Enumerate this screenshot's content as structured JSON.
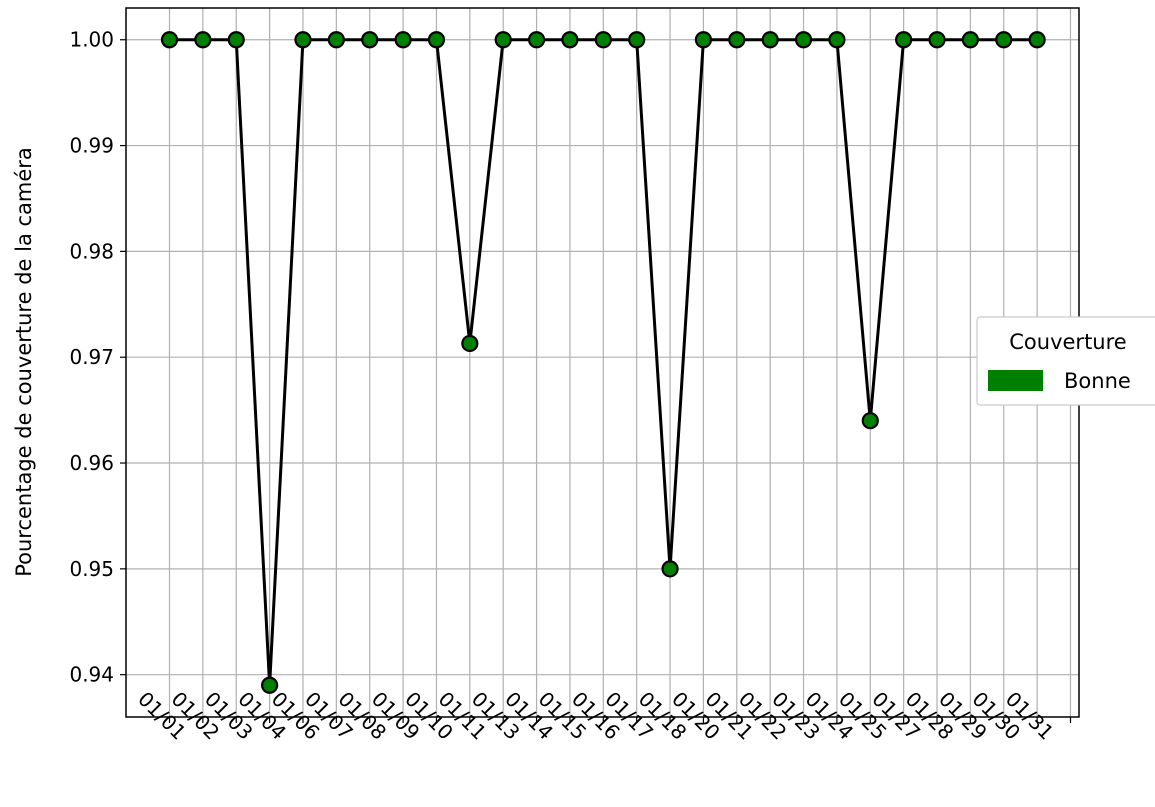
{
  "chart_data": {
    "type": "line",
    "title": "",
    "xlabel": "",
    "ylabel": "Pourcentage de couverture de la caméra",
    "x": [
      "01/01",
      "01/02",
      "01/03",
      "01/04",
      "01/06",
      "01/07",
      "01/08",
      "01/09",
      "01/10",
      "01/11",
      "01/13",
      "01/14",
      "01/15",
      "01/16",
      "01/17",
      "01/18",
      "01/20",
      "01/21",
      "01/22",
      "01/23",
      "01/24",
      "01/25",
      "01/27",
      "01/28",
      "01/29",
      "01/30",
      "01/31"
    ],
    "series": [
      {
        "values": [
          1.0,
          1.0,
          1.0,
          0.939,
          1.0,
          1.0,
          1.0,
          1.0,
          1.0,
          0.9713,
          1.0,
          1.0,
          1.0,
          1.0,
          1.0,
          0.95,
          1.0,
          1.0,
          1.0,
          1.0,
          1.0,
          0.964,
          1.0,
          1.0,
          1.0,
          1.0,
          1.0
        ],
        "line_color": "#000000",
        "marker_color": "#008000"
      }
    ],
    "ylim": [
      0.936,
      1.003
    ],
    "yticks": [
      "0.94",
      "0.95",
      "0.96",
      "0.97",
      "0.98",
      "0.99",
      "1.00"
    ],
    "grid": true,
    "legend": {
      "title": "Couverture",
      "placement": "right-outside",
      "entries": [
        {
          "label": "Bonne",
          "color": "#008000"
        }
      ]
    }
  }
}
